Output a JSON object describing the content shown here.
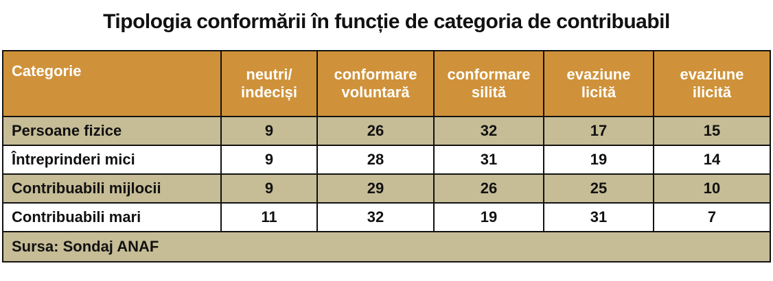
{
  "chart_data": {
    "type": "table",
    "title": "Tipologia conformării în funcție de categoria de contribuabil",
    "header": {
      "category": "Categorie",
      "columns": [
        "neutri/\nindeciși",
        "conformare\nvoluntară",
        "conformare\nsilită",
        "evaziune\nlicită",
        "evaziune\nilicită"
      ]
    },
    "rows": [
      {
        "label": "Persoane fizice",
        "values": [
          "9",
          "26",
          "32",
          "17",
          "15"
        ]
      },
      {
        "label": "Întreprinderi mici",
        "values": [
          "9",
          "28",
          "31",
          "19",
          "14"
        ]
      },
      {
        "label": "Contribuabili mijlocii",
        "values": [
          "9",
          "29",
          "26",
          "25",
          "10"
        ]
      },
      {
        "label": "Contribuabili mari",
        "values": [
          "11",
          "32",
          "19",
          "31",
          "7"
        ]
      }
    ],
    "source": "Sursa: Sondaj ANAF"
  },
  "colors": {
    "header_bg": "#cf923a",
    "shaded_row_bg": "#c6bc96",
    "plain_row_bg": "#ffffff",
    "border": "#111111"
  }
}
